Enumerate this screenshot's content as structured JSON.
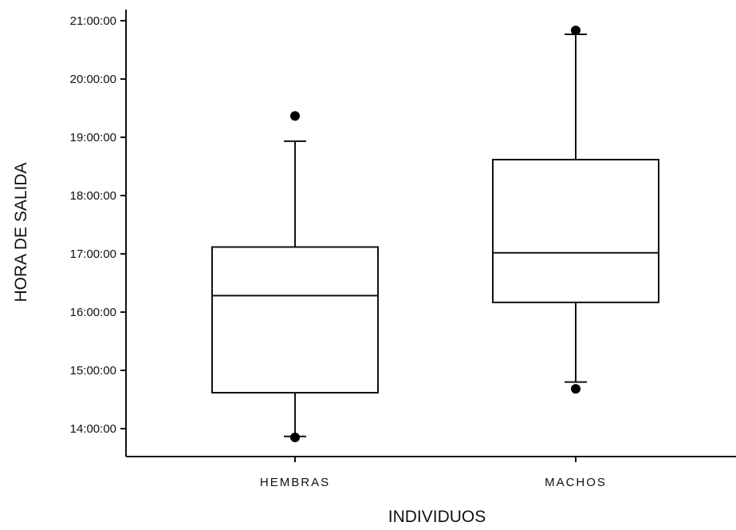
{
  "chart_data": {
    "type": "box",
    "title": "",
    "xlabel": "INDIVIDUOS",
    "ylabel": "HORA DE SALIDA",
    "ylim": [
      "13:35:00",
      "21:10:00"
    ],
    "yticks": [
      "14:00:00",
      "15:00:00",
      "16:00:00",
      "17:00:00",
      "18:00:00",
      "19:00:00",
      "20:00:00",
      "21:00:00"
    ],
    "categories": [
      "HEMBRAS",
      "MACHOS"
    ],
    "boxes": [
      {
        "category": "HEMBRAS",
        "whisker_low": "13:52:00",
        "q1": "14:37:00",
        "median": "16:17:00",
        "q3": "17:07:00",
        "whisker_high": "18:56:00",
        "outliers": [
          "13:51:00",
          "19:22:00"
        ]
      },
      {
        "category": "MACHOS",
        "whisker_low": "14:48:00",
        "q1": "16:10:00",
        "median": "17:01:00",
        "q3": "18:37:00",
        "whisker_high": "20:46:00",
        "outliers": [
          "14:41:00",
          "20:50:00"
        ]
      }
    ],
    "grid": false,
    "legend": "none"
  }
}
